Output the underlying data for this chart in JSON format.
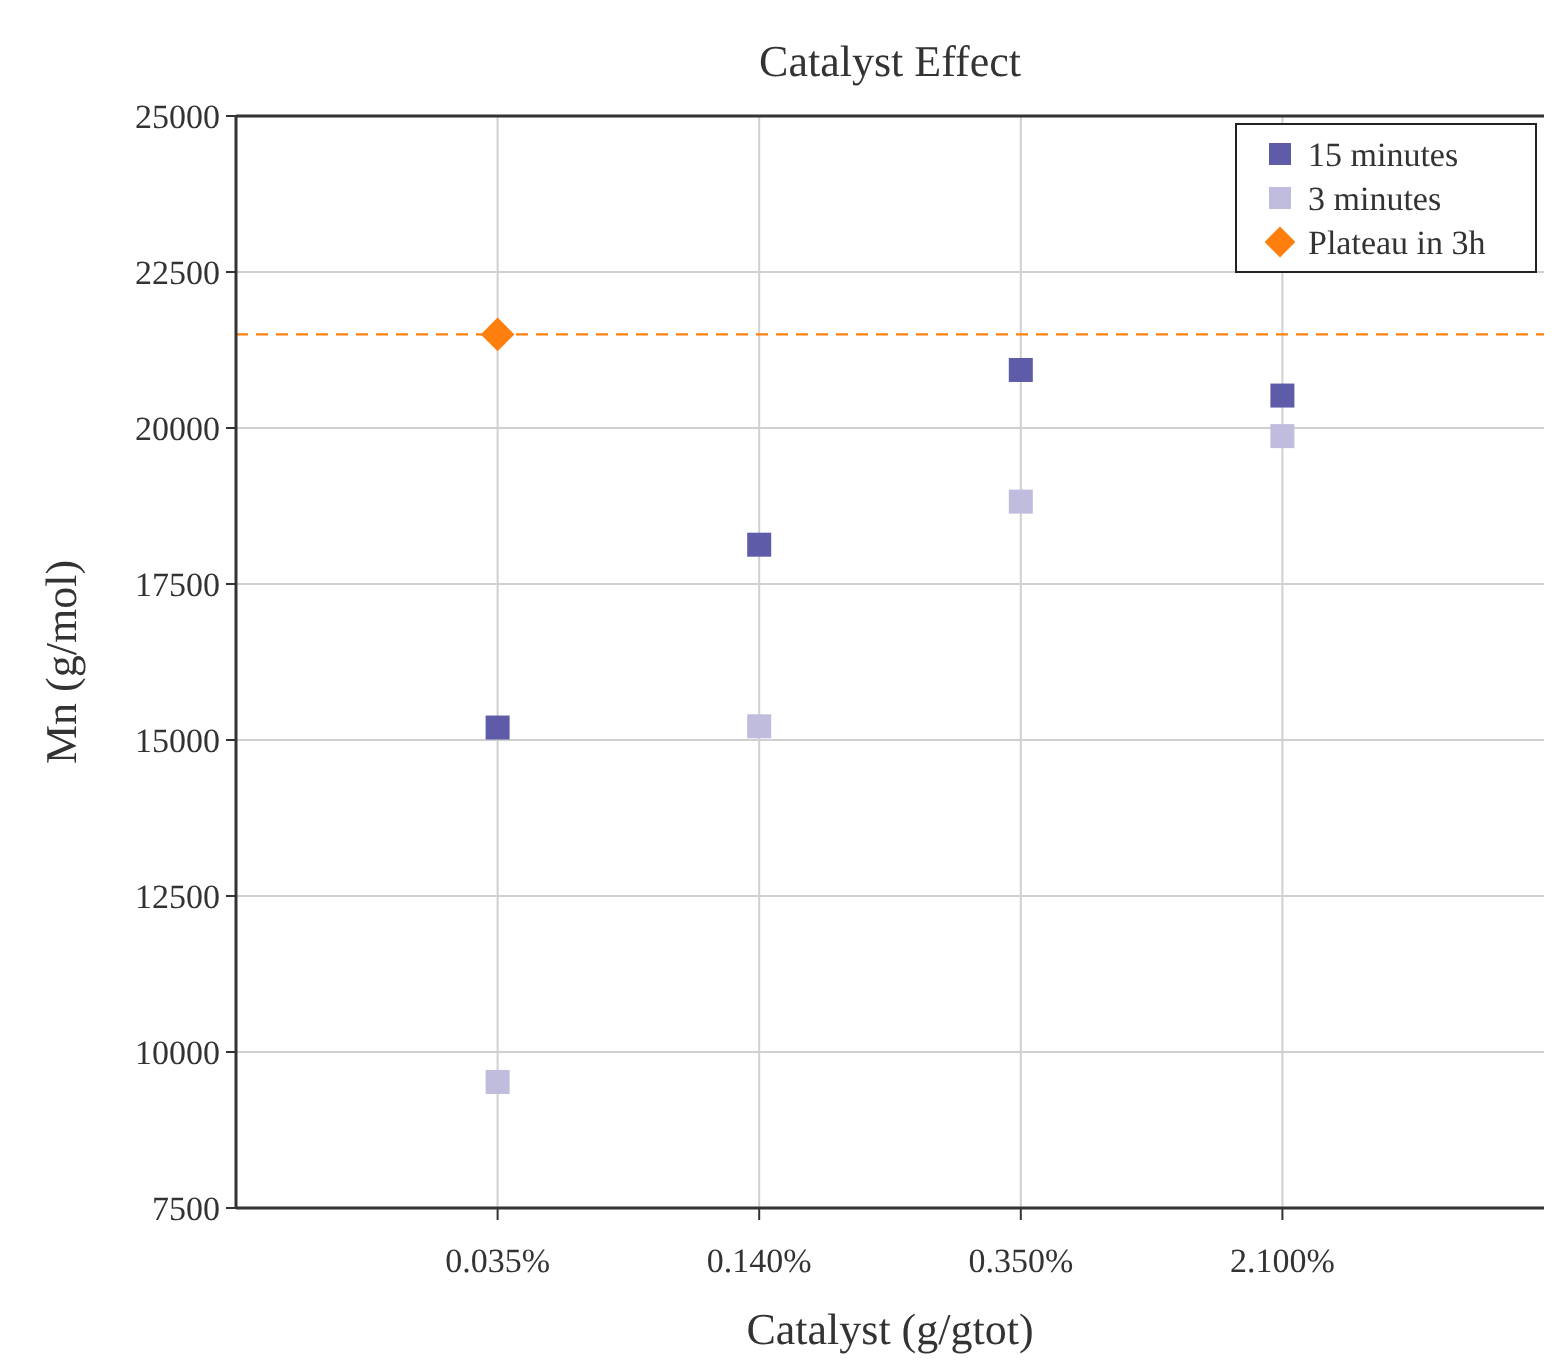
{
  "chart_data": {
    "type": "scatter",
    "title": "Catalyst Effect",
    "xlabel": "Catalyst (g/gtot)",
    "ylabel": "Mn (g/mol)",
    "categories": [
      "0.035%",
      "0.140%",
      "0.350%",
      "2.100%"
    ],
    "series": [
      {
        "name": "15 minutes",
        "color": "#5e5ca8",
        "marker": "square",
        "values": [
          15200,
          18130,
          20930,
          20520
        ]
      },
      {
        "name": "3 minutes",
        "color": "#c0bcde",
        "marker": "square",
        "values": [
          9520,
          15220,
          18820,
          19870
        ]
      },
      {
        "name": "Plateau in 3h",
        "color": "#ff7f0e",
        "marker": "diamond",
        "x": [
          "0.035%"
        ],
        "values": [
          21500
        ]
      }
    ],
    "ylim": [
      7500,
      25000
    ],
    "yticks": [
      7500,
      10000,
      12500,
      15000,
      17500,
      20000,
      22500,
      25000
    ],
    "ref_lines": [
      {
        "axis": "y",
        "value": 21500,
        "color": "#ff7f0e",
        "line_style": "dashed"
      }
    ],
    "grid": true,
    "legend": "top right"
  }
}
